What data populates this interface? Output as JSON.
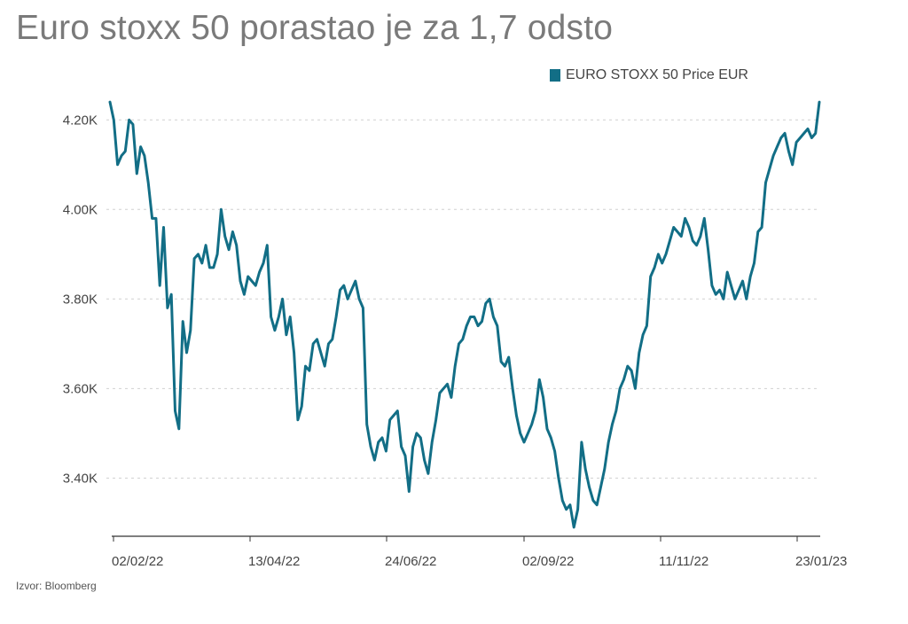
{
  "title": "Euro stoxx 50 porastao je za 1,7 odsto",
  "source": "Izvor: Bloomberg",
  "colors": {
    "line": "#126e86",
    "grid": "#d0d0d0",
    "axis": "#333333"
  },
  "chart_data": {
    "type": "line",
    "title": "Euro stoxx 50 porastao je za 1,7 odsto",
    "xlabel": "",
    "ylabel": "",
    "ylim": [
      3270,
      4250
    ],
    "y_ticks": [
      {
        "value": 3400,
        "label": "3.40K"
      },
      {
        "value": 3600,
        "label": "3.60K"
      },
      {
        "value": 3800,
        "label": "3.80K"
      },
      {
        "value": 4000,
        "label": "4.00K"
      },
      {
        "value": 4200,
        "label": "4.20K"
      }
    ],
    "x_ticks": [
      "02/02/22",
      "13/04/22",
      "24/06/22",
      "02/09/22",
      "11/11/22",
      "23/01/23"
    ],
    "grid": "horizontal dotted",
    "legend_position": "top-right",
    "series": [
      {
        "name": "EURO STOXX 50 Price EUR",
        "values": [
          4240,
          4200,
          4100,
          4120,
          4130,
          4200,
          4190,
          4080,
          4140,
          4120,
          4060,
          3980,
          3980,
          3830,
          3960,
          3780,
          3810,
          3550,
          3510,
          3750,
          3680,
          3730,
          3890,
          3900,
          3880,
          3920,
          3870,
          3870,
          3900,
          4000,
          3940,
          3910,
          3950,
          3920,
          3840,
          3810,
          3850,
          3840,
          3830,
          3860,
          3880,
          3920,
          3760,
          3730,
          3760,
          3800,
          3720,
          3760,
          3680,
          3530,
          3560,
          3650,
          3640,
          3700,
          3710,
          3680,
          3650,
          3700,
          3710,
          3760,
          3820,
          3830,
          3800,
          3820,
          3840,
          3800,
          3780,
          3520,
          3470,
          3440,
          3480,
          3490,
          3460,
          3530,
          3540,
          3550,
          3470,
          3450,
          3370,
          3470,
          3500,
          3490,
          3440,
          3410,
          3480,
          3530,
          3590,
          3600,
          3610,
          3580,
          3650,
          3700,
          3710,
          3740,
          3760,
          3760,
          3740,
          3750,
          3790,
          3800,
          3760,
          3740,
          3660,
          3650,
          3670,
          3600,
          3540,
          3500,
          3480,
          3500,
          3520,
          3550,
          3620,
          3580,
          3510,
          3490,
          3460,
          3400,
          3350,
          3330,
          3340,
          3290,
          3330,
          3480,
          3420,
          3380,
          3350,
          3340,
          3380,
          3420,
          3480,
          3520,
          3550,
          3600,
          3620,
          3650,
          3640,
          3600,
          3680,
          3720,
          3740,
          3850,
          3870,
          3900,
          3880,
          3900,
          3930,
          3960,
          3950,
          3940,
          3980,
          3960,
          3930,
          3920,
          3940,
          3980,
          3910,
          3830,
          3810,
          3820,
          3800,
          3860,
          3830,
          3800,
          3820,
          3840,
          3800,
          3850,
          3880,
          3950,
          3960,
          4060,
          4090,
          4120,
          4140,
          4160,
          4170,
          4130,
          4100,
          4150,
          4160,
          4170,
          4180,
          4160,
          4170,
          4240
        ]
      }
    ]
  }
}
